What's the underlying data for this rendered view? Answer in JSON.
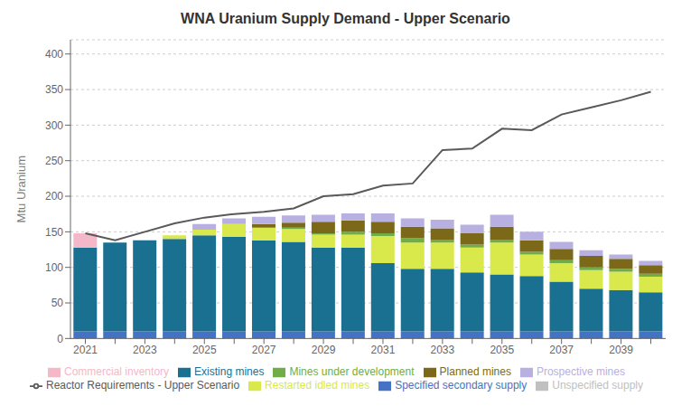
{
  "chart_data": {
    "type": "bar",
    "title": "WNA Uranium Supply Demand - Upper Scenario",
    "ylabel": "Mtu Uranium",
    "stacked": true,
    "grid": true,
    "legend": "bottom",
    "categories": [
      "2021",
      null,
      "2023",
      null,
      "2025",
      null,
      "2027",
      null,
      "2029",
      null,
      "2031",
      null,
      "2033",
      null,
      "2035",
      null,
      "2037",
      null,
      "2039",
      null
    ],
    "series": [
      {
        "name": "Specified secondary supply",
        "color": "#4472c4",
        "values": [
          10,
          10,
          10,
          10,
          10,
          10,
          10,
          10,
          10,
          10,
          10,
          10,
          10,
          10,
          10,
          10,
          10,
          10,
          10,
          10
        ]
      },
      {
        "name": "Existing mines",
        "color": "#1a7090",
        "values": [
          118,
          125,
          128,
          130,
          135,
          133,
          128,
          126,
          118,
          118,
          96,
          88,
          88,
          83,
          80,
          78,
          70,
          60,
          58,
          55
        ]
      },
      {
        "name": "Restarted idled mines",
        "color": "#d9e84a",
        "values": [
          0,
          0,
          0,
          5,
          8,
          18,
          18,
          18,
          18,
          18,
          38,
          37,
          37,
          35,
          45,
          30,
          26,
          26,
          26,
          22
        ]
      },
      {
        "name": "Mines under development",
        "color": "#70ad47",
        "values": [
          0,
          0,
          0,
          0,
          0,
          0,
          0,
          2,
          2,
          4,
          4,
          6,
          4,
          4,
          4,
          4,
          4,
          4,
          4,
          4
        ]
      },
      {
        "name": "Planned mines",
        "color": "#7b6919",
        "values": [
          0,
          0,
          0,
          0,
          0,
          0,
          5,
          7,
          16,
          16,
          16,
          16,
          16,
          16,
          18,
          16,
          16,
          16,
          14,
          12
        ]
      },
      {
        "name": "Prospective mines",
        "color": "#b8b0e0",
        "values": [
          0,
          0,
          0,
          0,
          8,
          8,
          10,
          10,
          10,
          10,
          12,
          12,
          12,
          12,
          17,
          12,
          10,
          8,
          6,
          6
        ]
      },
      {
        "name": "Commercial inventory",
        "color": "#f4b8c8",
        "values": [
          20,
          0,
          0,
          0,
          0,
          0,
          0,
          0,
          0,
          0,
          0,
          0,
          0,
          0,
          0,
          0,
          0,
          0,
          0,
          0
        ]
      },
      {
        "name": "Unspecified supply",
        "color": "#c0c0c0",
        "values": [
          0,
          0,
          0,
          0,
          0,
          0,
          0,
          0,
          0,
          0,
          0,
          0,
          0,
          0,
          0,
          0,
          0,
          0,
          0,
          0
        ]
      },
      {
        "name": "Reactor Requirements - Upper Scenario",
        "type": "line",
        "color": "#595959",
        "values": [
          148,
          138,
          150,
          162,
          170,
          175,
          178,
          183,
          200,
          203,
          215,
          218,
          265,
          267,
          295,
          293,
          315,
          325,
          335,
          347
        ]
      }
    ],
    "ylim": [
      0,
      420
    ],
    "yticks": [
      0,
      50,
      100,
      150,
      200,
      250,
      300,
      350,
      400
    ]
  }
}
